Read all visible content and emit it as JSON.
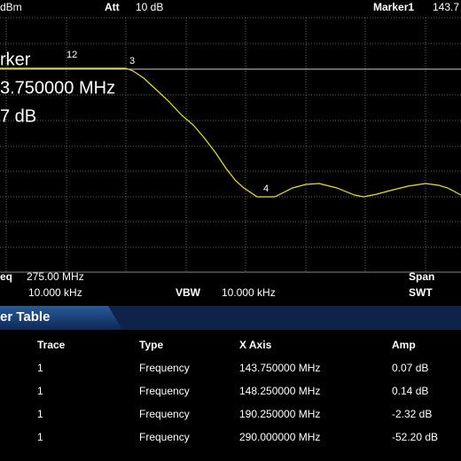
{
  "status_bar": {
    "ref_unit": "dBm",
    "att_label": "Att",
    "att_value": "10 dB",
    "marker_label": "Marker1",
    "marker_value": "143.7"
  },
  "marker_readout": {
    "title": "rker",
    "frequency": "3.750000 MHz",
    "amplitude": "7 dB"
  },
  "marker_tags": [
    "12",
    "3",
    "4"
  ],
  "footer": {
    "center_label": "eq",
    "center_value": "275.00 MHz",
    "rbw_value": "10.000 kHz",
    "vbw_label": "VBW",
    "vbw_value": "10.000 kHz",
    "span_label": "Span",
    "swt_label": "SWT"
  },
  "marker_table": {
    "title": "er Table",
    "headers": [
      "Trace",
      "Type",
      "X Axis",
      "Amp"
    ],
    "rows": [
      [
        "1",
        "Frequency",
        "143.750000 MHz",
        "0.07 dB"
      ],
      [
        "1",
        "Frequency",
        "148.250000 MHz",
        "0.14 dB"
      ],
      [
        "1",
        "Frequency",
        "190.250000 MHz",
        "-2.32 dB"
      ],
      [
        "1",
        "Frequency",
        "290.000000 MHz",
        "-52.20 dB"
      ]
    ]
  }
}
